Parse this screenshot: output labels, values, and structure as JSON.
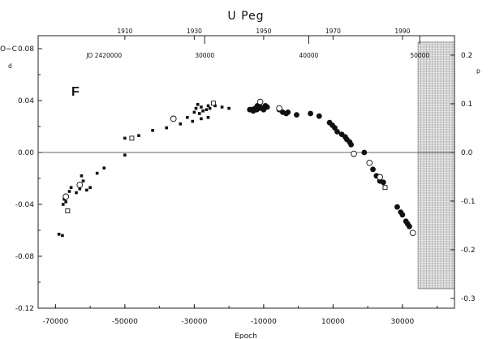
{
  "chart_data": {
    "type": "scatter",
    "title": "U Peg",
    "panel_label": "F",
    "xlabel": "Epoch",
    "ylabel": "O−C",
    "ylabel_unit": "d",
    "right_unit": "p",
    "xlim": [
      -75000,
      45000
    ],
    "ylim": [
      -0.12,
      0.09
    ],
    "x_ticks": [
      "-70000",
      "-50000",
      "-30000",
      "-10000",
      "10000",
      "30000"
    ],
    "x_tick_values": [
      -70000,
      -50000,
      -30000,
      -10000,
      10000,
      30000
    ],
    "y_ticks": [
      "-0.12",
      "-0.08",
      "-0.04",
      "0.00",
      "0.04",
      "0.08"
    ],
    "y_tick_values": [
      -0.12,
      -0.08,
      -0.04,
      0.0,
      0.04,
      0.08
    ],
    "right_ticks": [
      "-0.3",
      "-0.2",
      "-0.1",
      "0.0",
      "0.1",
      "0.2"
    ],
    "right_tick_values": [
      -0.3,
      -0.2,
      -0.1,
      0.0,
      0.1,
      0.2
    ],
    "right_factor": 2.667,
    "top_year_ticks": [
      "1910",
      "1930",
      "1950",
      "1970",
      "1990"
    ],
    "top_year_values": [
      -50000,
      -30000,
      -10000,
      10000,
      30000
    ],
    "top_jd_label": "JD 2420000",
    "top_jd_label_at": -56000,
    "top_jd_ticks": [
      "30000",
      "40000",
      "50000"
    ],
    "top_jd_values": [
      -27000,
      3000,
      35000
    ],
    "hatched_region": [
      34500,
      45000
    ],
    "zero_line": 0.0,
    "series": [
      {
        "marker": "filled-circle",
        "points": [
          [
            -12000,
            0.033
          ],
          [
            -11500,
            0.034
          ],
          [
            -11000,
            0.035
          ],
          [
            -10500,
            0.034
          ],
          [
            -10000,
            0.033
          ],
          [
            -9500,
            0.036
          ],
          [
            -13000,
            0.032
          ],
          [
            -14000,
            0.033
          ],
          [
            -12500,
            0.034
          ],
          [
            -11800,
            0.036
          ],
          [
            -9000,
            0.035
          ],
          [
            -13500,
            0.033
          ],
          [
            -5500,
            0.033
          ],
          [
            -4500,
            0.031
          ],
          [
            -3500,
            0.03
          ],
          [
            -3000,
            0.031
          ],
          [
            -500,
            0.029
          ],
          [
            3500,
            0.03
          ],
          [
            6000,
            0.028
          ],
          [
            9000,
            0.023
          ],
          [
            9800,
            0.021
          ],
          [
            10500,
            0.019
          ],
          [
            11200,
            0.016
          ],
          [
            12500,
            0.014
          ],
          [
            13500,
            0.012
          ],
          [
            14000,
            0.01
          ],
          [
            14800,
            0.008
          ],
          [
            15200,
            0.006
          ],
          [
            19000,
            0.0
          ],
          [
            21500,
            -0.013
          ],
          [
            22500,
            -0.018
          ],
          [
            23500,
            -0.022
          ],
          [
            24500,
            -0.023
          ],
          [
            28500,
            -0.042
          ],
          [
            29500,
            -0.046
          ],
          [
            30000,
            -0.048
          ],
          [
            31000,
            -0.053
          ],
          [
            31500,
            -0.055
          ],
          [
            32000,
            -0.057
          ]
        ]
      },
      {
        "marker": "small-filled",
        "points": [
          [
            -69000,
            -0.063
          ],
          [
            -68000,
            -0.064
          ],
          [
            -67800,
            -0.04
          ],
          [
            -67500,
            -0.036
          ],
          [
            -67000,
            -0.038
          ],
          [
            -66000,
            -0.03
          ],
          [
            -65500,
            -0.027
          ],
          [
            -64000,
            -0.031
          ],
          [
            -63000,
            -0.028
          ],
          [
            -62500,
            -0.018
          ],
          [
            -62000,
            -0.022
          ],
          [
            -61000,
            -0.029
          ],
          [
            -60000,
            -0.027
          ],
          [
            -58000,
            -0.016
          ],
          [
            -56000,
            -0.012
          ],
          [
            -50000,
            -0.002
          ],
          [
            -50000,
            0.011
          ],
          [
            -46000,
            0.013
          ],
          [
            -42000,
            0.017
          ],
          [
            -38000,
            0.019
          ],
          [
            -34000,
            0.022
          ],
          [
            -32000,
            0.027
          ],
          [
            -30000,
            0.031
          ],
          [
            -29500,
            0.034
          ],
          [
            -29000,
            0.037
          ],
          [
            -28500,
            0.03
          ],
          [
            -28000,
            0.035
          ],
          [
            -27500,
            0.032
          ],
          [
            -26500,
            0.033
          ],
          [
            -26000,
            0.036
          ],
          [
            -25500,
            0.034
          ],
          [
            -24000,
            0.036
          ],
          [
            -22000,
            0.035
          ],
          [
            -20000,
            0.034
          ],
          [
            -30500,
            0.024
          ],
          [
            -28000,
            0.026
          ],
          [
            -26000,
            0.027
          ]
        ]
      },
      {
        "marker": "open-circle",
        "points": [
          [
            -11000,
            0.039
          ],
          [
            -5500,
            0.034
          ],
          [
            16000,
            -0.001
          ],
          [
            20500,
            -0.008
          ],
          [
            33000,
            -0.062
          ],
          [
            -67000,
            -0.034
          ],
          [
            -63000,
            -0.025
          ],
          [
            -36000,
            0.026
          ],
          [
            23500,
            -0.019
          ]
        ]
      },
      {
        "marker": "open-square",
        "points": [
          [
            -48000,
            0.011
          ],
          [
            -24500,
            0.038
          ],
          [
            25000,
            -0.027
          ],
          [
            -66500,
            -0.045
          ]
        ]
      }
    ]
  }
}
